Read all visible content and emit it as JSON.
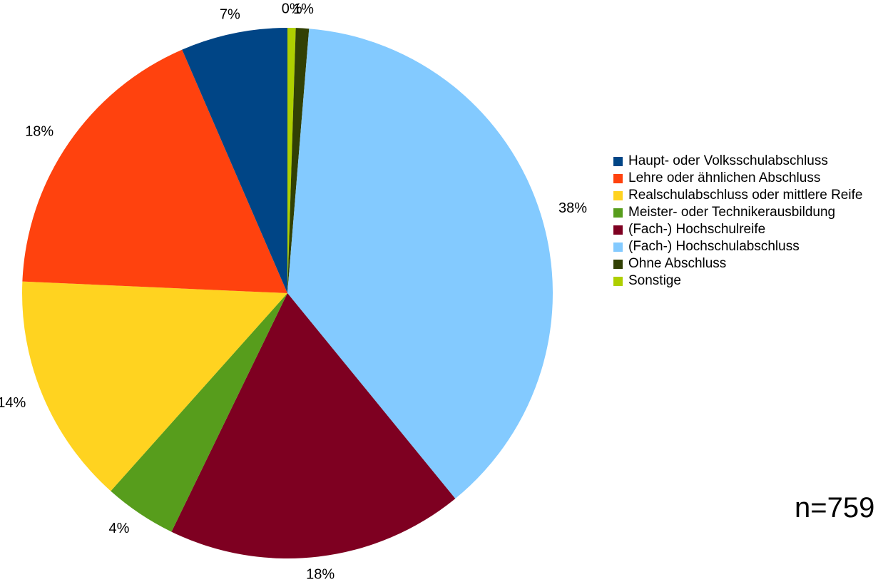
{
  "chart_data": {
    "type": "pie",
    "start_angle_deg": 0,
    "direction": "clockwise",
    "slices": [
      {
        "label": "Sonstige",
        "value": 0.5,
        "display": "0%",
        "color": "#aecf00"
      },
      {
        "label": "Ohne Abschluss",
        "value": 0.8,
        "display": "1%",
        "color": "#314004"
      },
      {
        "label": "(Fach-) Hochschulabschluss",
        "value": 37.8,
        "display": "38%",
        "color": "#83caff"
      },
      {
        "label": "(Fach-) Hochschulreife",
        "value": 18.1,
        "display": "18%",
        "color": "#7e0021"
      },
      {
        "label": "Meister- oder Technikerausbildung",
        "value": 4.4,
        "display": "4%",
        "color": "#579d1c"
      },
      {
        "label": "Realschulabschluss oder mittlere Reife",
        "value": 14.1,
        "display": "14%",
        "color": "#ffd320"
      },
      {
        "label": "Lehre oder ähnlichen Abschluss",
        "value": 17.8,
        "display": "18%",
        "color": "#ff420e"
      },
      {
        "label": "Haupt- oder Volksschulabschluss",
        "value": 6.5,
        "display": "7%",
        "color": "#004586"
      }
    ],
    "legend": [
      {
        "label": "Haupt- oder Volksschulabschluss",
        "color": "#004586"
      },
      {
        "label": "Lehre oder ähnlichen Abschluss",
        "color": "#ff420e"
      },
      {
        "label": "Realschulabschluss oder mittlere Reife",
        "color": "#ffd320"
      },
      {
        "label": "Meister- oder Technikerausbildung",
        "color": "#579d1c"
      },
      {
        "label": "(Fach-) Hochschulreife",
        "color": "#7e0021"
      },
      {
        "label": "(Fach-) Hochschulabschluss",
        "color": "#83caff"
      },
      {
        "label": "Ohne Abschluss",
        "color": "#314004"
      },
      {
        "label": "Sonstige",
        "color": "#aecf00"
      }
    ],
    "legend_position": "right",
    "annotation": "n=759"
  }
}
